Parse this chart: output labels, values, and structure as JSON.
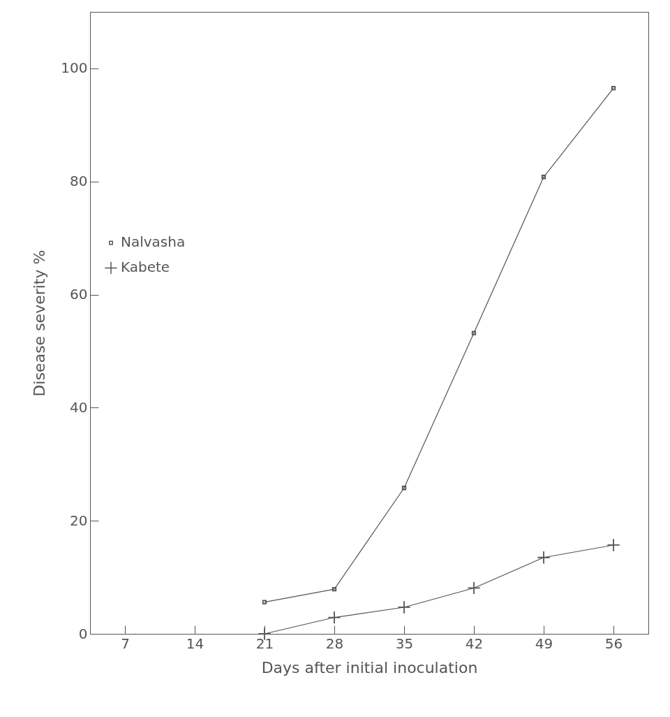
{
  "chart_data": {
    "type": "line",
    "xlabel": "Days after initial inoculation",
    "ylabel": "Disease severity %",
    "x": [
      21,
      28,
      35,
      42,
      49,
      56
    ],
    "xlim": [
      3.5,
      59.5
    ],
    "xticks": [
      7,
      14,
      21,
      28,
      35,
      42,
      49,
      56
    ],
    "ylim": [
      0,
      110
    ],
    "yticks": [
      0,
      20,
      40,
      60,
      80,
      100
    ],
    "grid": false,
    "legend": "left",
    "line_style": "solid",
    "series": [
      {
        "name": "Nalvasha",
        "color": "#555555",
        "marker": "square",
        "values": [
          5.6,
          7.9,
          25.8,
          53.2,
          80.8,
          96.5
        ]
      },
      {
        "name": "Kabete",
        "color": "#555555",
        "marker": "cross",
        "values": [
          0,
          2.9,
          4.7,
          8.1,
          13.5,
          15.7
        ]
      }
    ]
  }
}
